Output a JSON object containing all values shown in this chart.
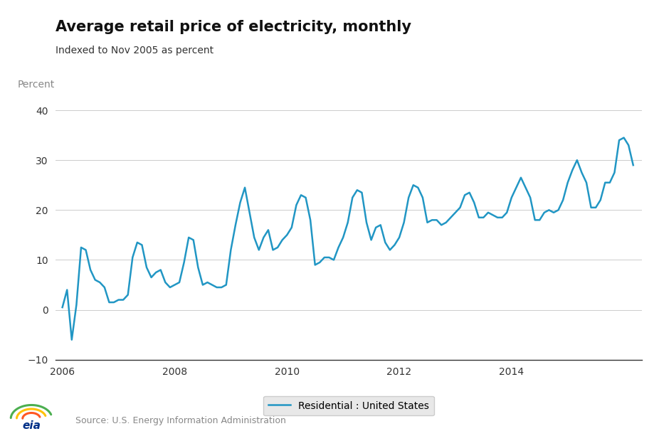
{
  "title": "Average retail price of electricity, monthly",
  "subtitle": "Indexed to Nov 2005 as percent",
  "ylabel": "Percent",
  "source": "Source: U.S. Energy Information Administration",
  "line_color": "#2196c4",
  "line_width": 1.8,
  "ylim": [
    -10,
    42
  ],
  "yticks": [
    -10,
    0,
    10,
    20,
    30,
    40
  ],
  "fig_bg_color": "#ffffff",
  "plot_bg_color": "#ffffff",
  "legend_label": "Residential : United States",
  "legend_bg": "#e8e8e8",
  "legend_edge": "#cccccc",
  "start_year": 2006,
  "start_month": 1,
  "values": [
    0.5,
    4.0,
    -6.0,
    1.0,
    12.5,
    12.0,
    8.0,
    6.0,
    5.5,
    4.5,
    1.5,
    1.5,
    2.0,
    2.0,
    3.0,
    10.5,
    13.5,
    13.0,
    8.5,
    6.5,
    7.5,
    8.0,
    5.5,
    4.5,
    5.0,
    5.5,
    9.5,
    14.5,
    14.0,
    8.5,
    5.0,
    5.5,
    5.0,
    4.5,
    4.5,
    5.0,
    12.0,
    17.0,
    21.5,
    24.5,
    19.5,
    14.5,
    12.0,
    14.5,
    16.0,
    12.0,
    12.5,
    14.0,
    15.0,
    16.5,
    21.0,
    23.0,
    22.5,
    18.0,
    9.0,
    9.5,
    10.5,
    10.5,
    10.0,
    12.5,
    14.5,
    17.5,
    22.5,
    24.0,
    23.5,
    17.5,
    14.0,
    16.5,
    17.0,
    13.5,
    12.0,
    13.0,
    14.5,
    17.5,
    22.5,
    25.0,
    24.5,
    22.5,
    17.5,
    18.0,
    18.0,
    17.0,
    17.5,
    18.5,
    19.5,
    20.5,
    23.0,
    23.5,
    21.5,
    18.5,
    18.5,
    19.5,
    19.0,
    18.5,
    18.5,
    19.5,
    22.5,
    24.5,
    26.5,
    24.5,
    22.5,
    18.0,
    18.0,
    19.5,
    20.0,
    19.5,
    20.0,
    22.0,
    25.5,
    28.0,
    30.0,
    27.5,
    25.5,
    20.5,
    20.5,
    22.0,
    25.5,
    25.5,
    27.5,
    34.0,
    34.5,
    33.0,
    29.0
  ]
}
